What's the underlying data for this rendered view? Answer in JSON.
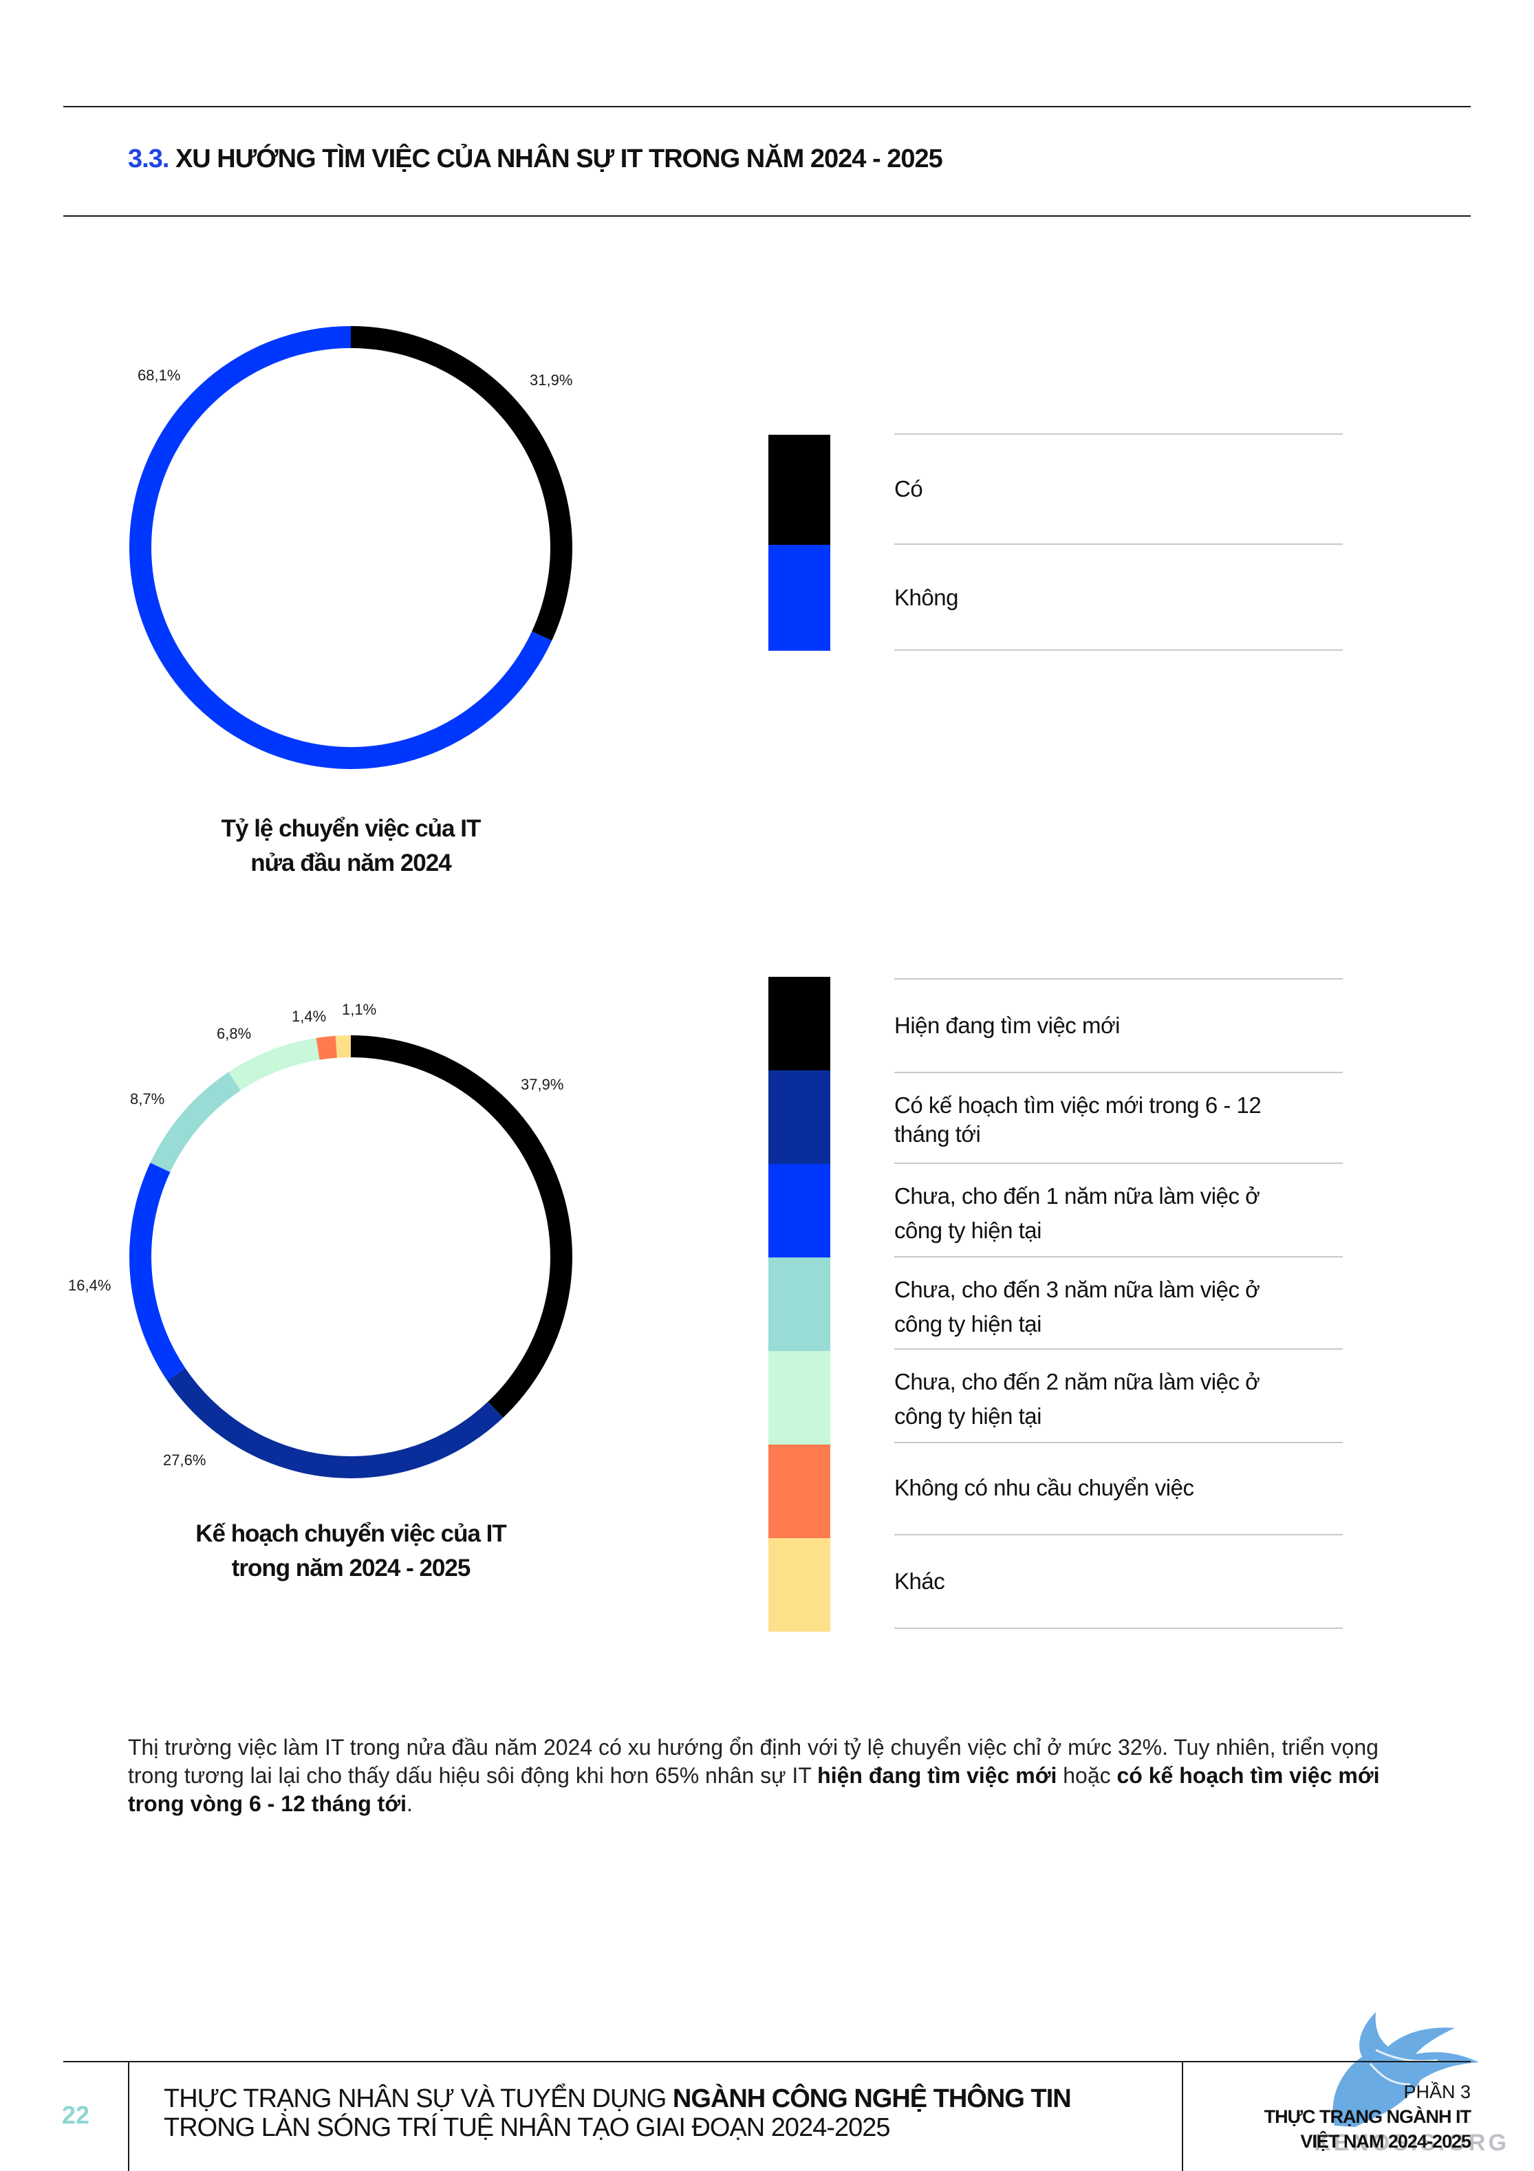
{
  "header": {
    "section_number": "3.3.",
    "section_title": "XU HƯỚNG TÌM VIỆC CỦA NHÂN SỰ IT TRONG NĂM 2024 - 2025"
  },
  "chart_data": [
    {
      "type": "pie",
      "title": "Tỷ lệ chuyển việc của IT nửa đầu năm 2024",
      "title_lines": [
        "Tỷ lệ chuyển việc của IT",
        "nửa đầu năm 2024"
      ],
      "slices": [
        {
          "label": "Có",
          "value": 31.9,
          "display": "31,9%",
          "color": "#000000"
        },
        {
          "label": "Không",
          "value": 68.1,
          "display": "68,1%",
          "color": "#0037ff"
        }
      ]
    },
    {
      "type": "pie",
      "title": "Kế hoạch chuyển việc của IT trong năm 2024 - 2025",
      "title_lines": [
        "Kế hoạch chuyển việc của IT",
        "trong năm 2024 - 2025"
      ],
      "slices": [
        {
          "label": "Hiện đang tìm việc mới",
          "value": 37.9,
          "display": "37,9%",
          "color": "#000000"
        },
        {
          "label": "Có kế hoạch tìm việc mới trong 6 - 12 tháng tới",
          "value": 27.6,
          "display": "27,6%",
          "color": "#0a2d9c"
        },
        {
          "label": "Chưa, cho đến 1 năm nữa làm việc ở công ty hiện tại",
          "value": 16.4,
          "display": "16,4%",
          "color": "#0037ff"
        },
        {
          "label": "Chưa, cho đến 3 năm nữa làm việc ở công ty hiện tại",
          "value": 8.7,
          "display": "8,7%",
          "color": "#98dcd5"
        },
        {
          "label": "Chưa, cho đến 2 năm nữa làm việc ở công ty hiện tại",
          "value": 6.8,
          "display": "6,8%",
          "color": "#c8f7da"
        },
        {
          "label": "Không có nhu cầu chuyển việc",
          "value": 1.4,
          "display": "1,4%",
          "color": "#ff7b4f"
        },
        {
          "label": "Khác",
          "value": 1.1,
          "display": "1,1%",
          "color": "#ffe08a"
        }
      ]
    }
  ],
  "legend1": {
    "items": [
      "Có",
      "Không"
    ]
  },
  "legend2": {
    "items": [
      [
        "Hiện đang tìm việc mới"
      ],
      [
        "Có kế hoạch tìm việc mới trong 6 - 12",
        "tháng tới"
      ],
      [
        "Chưa, cho đến 1 năm nữa làm việc ở",
        "công ty hiện tại"
      ],
      [
        "Chưa, cho đến 3 năm nữa làm việc ở",
        "công ty hiện tại"
      ],
      [
        "Chưa, cho đến 2 năm nữa làm việc ở",
        "công ty hiện tại"
      ],
      [
        "Không có nhu cầu chuyển việc"
      ],
      [
        "Khác"
      ]
    ]
  },
  "paragraph": {
    "part1": "Thị trường việc làm IT trong nửa đầu năm 2024 có xu hướng ổn định với tỷ lệ chuyển việc chỉ ở mức 32%. Tuy nhiên, triển vọng trong tương lai  lại cho thấy dấu hiệu sôi động khi hơn 65% nhân sự IT ",
    "bold1": "hiện đang tìm việc mới",
    "part2": " hoặc ",
    "bold2": "có kế hoạch tìm việc mới trong vòng 6 - 12 tháng tới",
    "part3": "."
  },
  "footer": {
    "page_number": "22",
    "title_line1_plain": "THỰC TRẠNG NHÂN SỰ VÀ TUYỂN DỤNG ",
    "title_line1_bold": "NGÀNH CÔNG NGHỆ THÔNG TIN",
    "title_line2": "TRONG LÀN SÓNG TRÍ TUỆ NHÂN TẠO GIAI ĐOẠN 2024-2025",
    "part_label": "PHẦN 3",
    "part_title_line1": "THỰC TRẠNG NGÀNH IT",
    "part_title_line2": "VIỆT NAM 2024-2025"
  },
  "watermark": {
    "text": "KENOSIS.ORG",
    "icon": "griffin-logo"
  }
}
